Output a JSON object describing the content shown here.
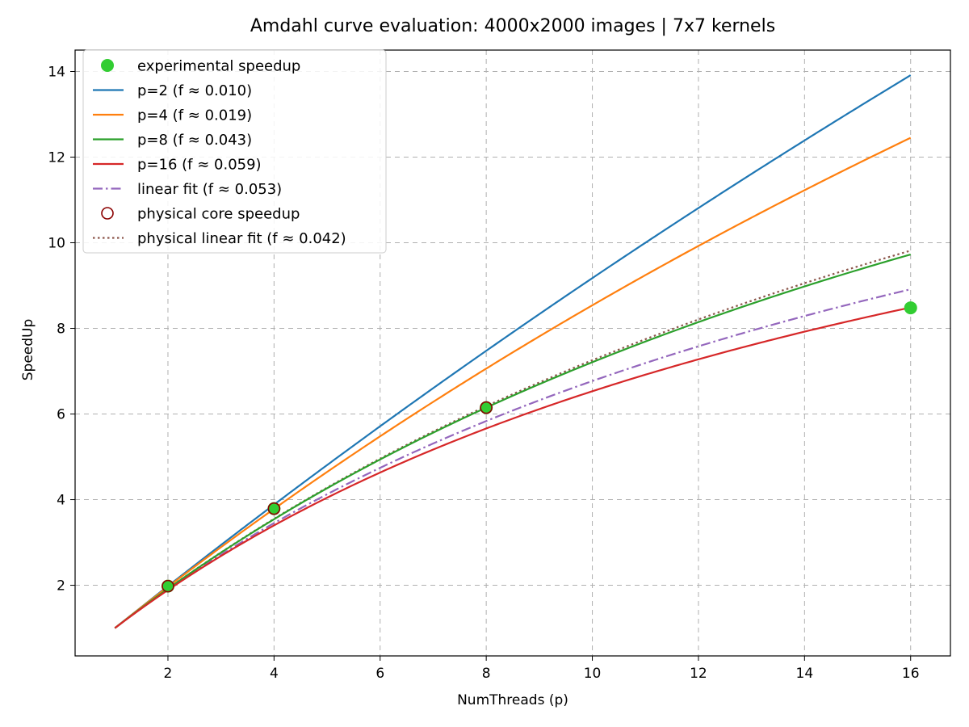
{
  "chart_data": {
    "type": "line",
    "title": "Amdahl curve evaluation: 4000x2000 images | 7x7 kernels",
    "xlabel": "NumThreads (p)",
    "ylabel": "SpeedUp",
    "xlim": [
      0.25,
      16.75
    ],
    "ylim": [
      0.35,
      14.5
    ],
    "xticks": [
      2,
      4,
      6,
      8,
      10,
      12,
      14,
      16
    ],
    "yticks": [
      2,
      4,
      6,
      8,
      10,
      12,
      14
    ],
    "grid": true,
    "legend_position": "top-left",
    "scatter": [
      {
        "name": "experimental speedup",
        "color": "#32cd32",
        "marker": "filled-circle",
        "points": [
          [
            2,
            1.98
          ],
          [
            4,
            3.79
          ],
          [
            8,
            6.15
          ],
          [
            16,
            8.48
          ]
        ]
      },
      {
        "name": "physical core speedup",
        "color": "#8b0000",
        "marker": "hollow-circle",
        "points": [
          [
            2,
            1.98
          ],
          [
            4,
            3.79
          ],
          [
            8,
            6.15
          ]
        ]
      }
    ],
    "series": [
      {
        "name": "p=2 (f ≈ 0.010)",
        "f": 0.01,
        "color": "#1f77b4",
        "style": "solid",
        "x_range": [
          1,
          16
        ]
      },
      {
        "name": "p=4 (f ≈ 0.019)",
        "f": 0.019,
        "color": "#ff7f0e",
        "style": "solid",
        "x_range": [
          1,
          16
        ]
      },
      {
        "name": "p=8 (f ≈ 0.043)",
        "f": 0.043,
        "color": "#2ca02c",
        "style": "solid",
        "x_range": [
          1,
          16
        ]
      },
      {
        "name": "p=16 (f ≈ 0.059)",
        "f": 0.059,
        "color": "#d62728",
        "style": "solid",
        "x_range": [
          1,
          16
        ]
      },
      {
        "name": "linear fit (f ≈ 0.053)",
        "f": 0.053,
        "color": "#9467bd",
        "style": "dashdot",
        "x_range": [
          1,
          16
        ]
      },
      {
        "name": "physical linear fit (f ≈ 0.042)",
        "f": 0.042,
        "color": "#8c564b",
        "style": "dotted",
        "x_range": [
          1,
          16
        ]
      }
    ],
    "legend_order": [
      "experimental speedup",
      "p=2 (f ≈ 0.010)",
      "p=4 (f ≈ 0.019)",
      "p=8 (f ≈ 0.043)",
      "p=16 (f ≈ 0.059)",
      "linear fit (f ≈ 0.053)",
      "physical core speedup",
      "physical linear fit (f ≈ 0.042)"
    ]
  }
}
